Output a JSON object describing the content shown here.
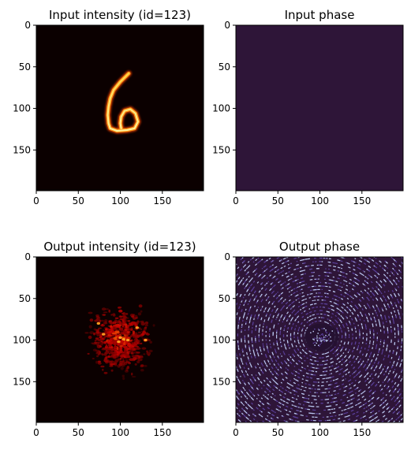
{
  "chart_data": [
    {
      "type": "heatmap",
      "title": "Input intensity (id=123)",
      "colormap": "hot",
      "xlim": [
        0,
        199
      ],
      "ylim": [
        199,
        0
      ],
      "xticks": [
        0,
        50,
        100,
        150
      ],
      "yticks": [
        0,
        50,
        100,
        150
      ],
      "content": "handwritten digit 6",
      "digit_stroke_points": [
        [
          110,
          58
        ],
        [
          100,
          68
        ],
        [
          92,
          78
        ],
        [
          88,
          88
        ],
        [
          86,
          98
        ],
        [
          85,
          108
        ],
        [
          86,
          118
        ],
        [
          88,
          124
        ],
        [
          96,
          127
        ],
        [
          108,
          126
        ],
        [
          117,
          124
        ],
        [
          121,
          116
        ],
        [
          118,
          106
        ],
        [
          112,
          101
        ],
        [
          105,
          103
        ],
        [
          101,
          110
        ],
        [
          100,
          118
        ],
        [
          101,
          124
        ]
      ]
    },
    {
      "type": "heatmap",
      "title": "Input phase",
      "colormap": "twilight",
      "xlim": [
        0,
        199
      ],
      "ylim": [
        199,
        0
      ],
      "xticks": [
        0,
        50,
        100,
        150
      ],
      "yticks": [
        0,
        50,
        100,
        150
      ],
      "uniform_color": "#2e1538"
    },
    {
      "type": "heatmap",
      "title": "Output intensity (id=123)",
      "colormap": "hot",
      "xlim": [
        0,
        199
      ],
      "ylim": [
        199,
        0
      ],
      "xticks": [
        0,
        50,
        100,
        150
      ],
      "yticks": [
        0,
        50,
        100,
        150
      ],
      "content": "speckle pattern concentrated near center"
    },
    {
      "type": "heatmap",
      "title": "Output phase",
      "colormap": "twilight",
      "xlim": [
        0,
        199
      ],
      "ylim": [
        199,
        0
      ],
      "xticks": [
        0,
        50,
        100,
        150
      ],
      "yticks": [
        0,
        50,
        100,
        150
      ],
      "content": "concentric ring phase pattern centered near (100,95)"
    }
  ],
  "colors": {
    "hot_background": "#0b0000",
    "phase_background": "#2e1538",
    "phase_ring_light": "#b9c6ee",
    "phase_ring_mid": "#5a3f9a"
  }
}
